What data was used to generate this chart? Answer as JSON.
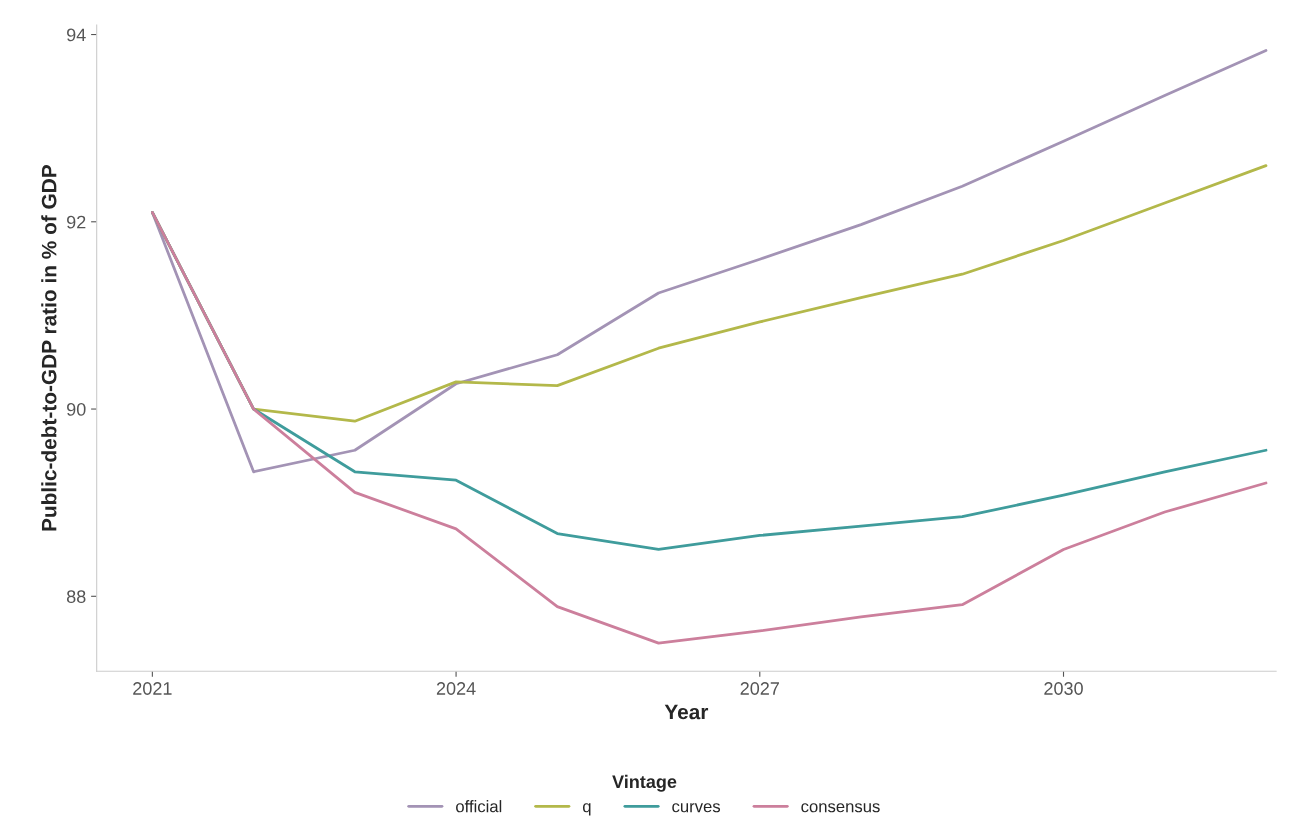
{
  "chart_data": {
    "type": "line",
    "xlabel": "Year",
    "ylabel": "Public-debt-to-GDP ratio in % of GDP",
    "legend_title": "Vintage",
    "x": [
      2021,
      2022,
      2023,
      2024,
      2025,
      2026,
      2027,
      2028,
      2029,
      2030,
      2031,
      2032
    ],
    "series": [
      {
        "name": "official",
        "color": "#a393b5",
        "values": [
          92.1,
          89.33,
          89.56,
          90.27,
          90.58,
          91.24,
          91.6,
          91.97,
          92.38,
          92.86,
          93.35,
          93.83
        ]
      },
      {
        "name": "q",
        "color": "#b3b84a",
        "values": [
          92.1,
          90.0,
          89.87,
          90.29,
          90.25,
          90.65,
          90.93,
          91.19,
          91.44,
          91.8,
          92.2,
          92.6
        ]
      },
      {
        "name": "curves",
        "color": "#3f9c9c",
        "values": [
          92.1,
          90.0,
          89.33,
          89.24,
          88.67,
          88.5,
          88.65,
          88.75,
          88.85,
          89.08,
          89.33,
          89.56
        ]
      },
      {
        "name": "consensus",
        "color": "#cc7f9c",
        "values": [
          92.1,
          90.0,
          89.11,
          88.72,
          87.89,
          87.5,
          87.63,
          87.78,
          87.91,
          88.5,
          88.9,
          89.21
        ]
      }
    ],
    "xlim": [
      2020.45,
      2032.1
    ],
    "xticks": [
      2021,
      2024,
      2027,
      2030
    ],
    "ylim": [
      87.2,
      94.1
    ],
    "yticks": [
      88,
      90,
      92,
      94
    ],
    "grid": false,
    "legend": "bottom",
    "line_style": "solid",
    "marker": "none"
  }
}
